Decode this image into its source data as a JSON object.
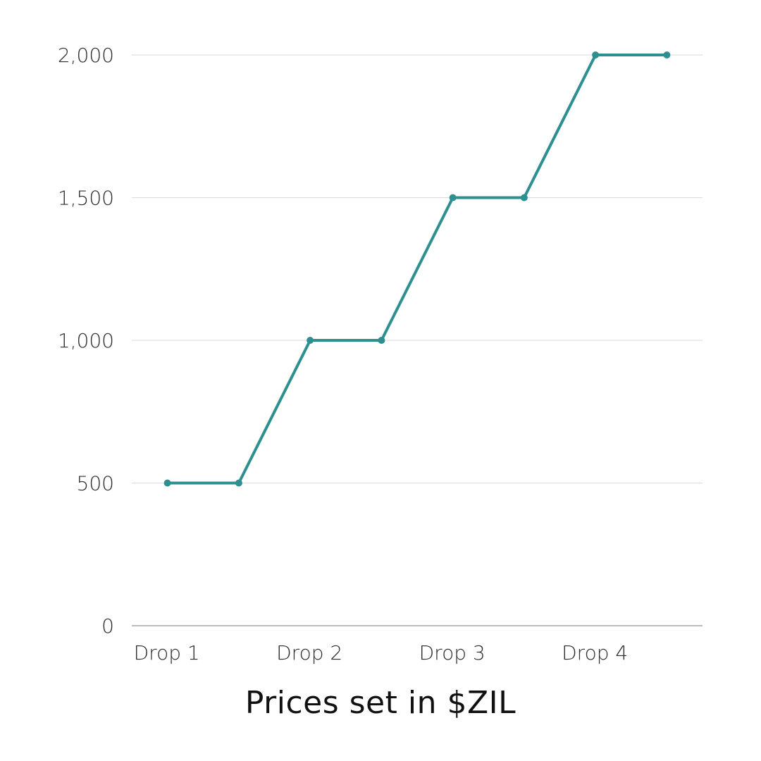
{
  "chart_data": {
    "type": "line",
    "title": "",
    "xlabel": "Prices set in $ZIL",
    "ylabel": "",
    "categories": [
      "Drop 1",
      "Drop 2",
      "Drop 3",
      "Drop 4"
    ],
    "x": [
      1,
      1.5,
      2,
      2.5,
      3,
      3.5,
      4,
      4.5
    ],
    "series": [
      {
        "values": [
          500,
          500,
          1000,
          1000,
          1500,
          1500,
          2000,
          2000
        ]
      }
    ],
    "ylim": [
      0,
      2000
    ],
    "yticks": [
      0,
      500,
      1000,
      1500,
      2000
    ],
    "ytick_labels": [
      "0",
      "500",
      "1,000",
      "1,500",
      "2,000"
    ],
    "grid": true,
    "legend": "none",
    "colors": {
      "line": "#2e8f91",
      "grid": "#d9d9d9",
      "axis": "#a6a6a6",
      "text": "#2b2b2b"
    }
  }
}
